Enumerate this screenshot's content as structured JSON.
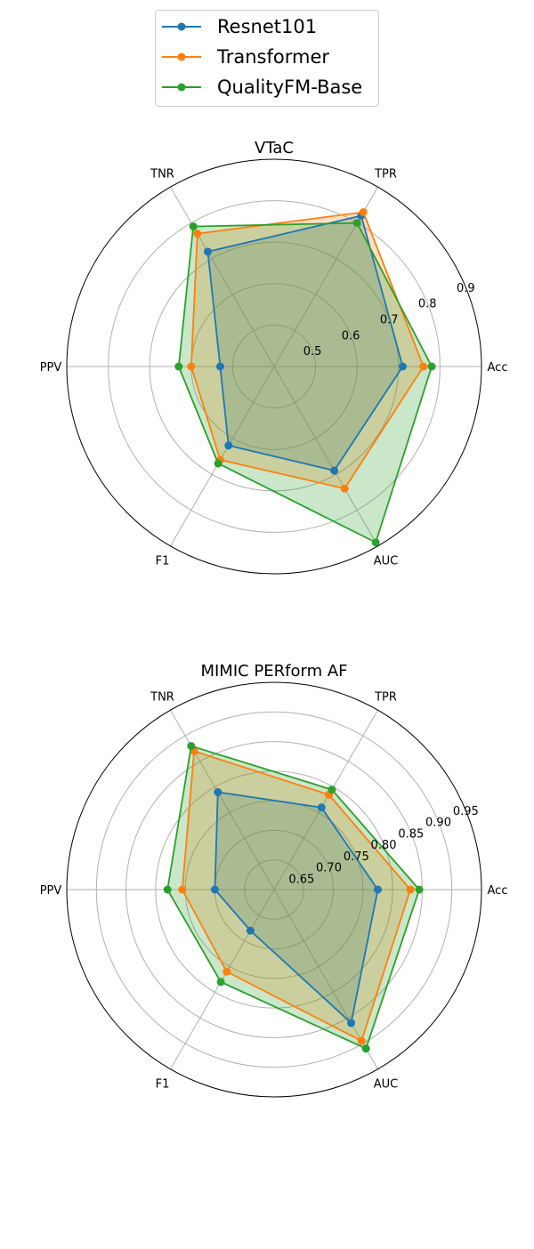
{
  "legend": {
    "placement": "top-center",
    "entries": [
      {
        "name": "Resnet101",
        "color": "#1f77b4"
      },
      {
        "name": "Transformer",
        "color": "#ff7f0e"
      },
      {
        "name": "QualityFM-Base",
        "color": "#2ca02c"
      }
    ]
  },
  "chart_data": [
    {
      "type": "radar",
      "title": "VTaC",
      "axes": [
        "Acc",
        "TPR",
        "TNR",
        "PPV",
        "F1",
        "AUC"
      ],
      "rlim": [
        0.4,
        0.9
      ],
      "radial_ticks": [
        0.5,
        0.6,
        0.7,
        0.8,
        0.9
      ],
      "radial_tick_labels": [
        "0.5",
        "0.6",
        "0.7",
        "0.8",
        "0.9"
      ],
      "grid": true,
      "series": [
        {
          "name": "Resnet101",
          "values": [
            0.71,
            0.82,
            0.72,
            0.53,
            0.62,
            0.69
          ]
        },
        {
          "name": "Transformer",
          "values": [
            0.76,
            0.83,
            0.77,
            0.6,
            0.66,
            0.74
          ]
        },
        {
          "name": "QualityFM-Base",
          "values": [
            0.78,
            0.8,
            0.79,
            0.63,
            0.67,
            0.89
          ]
        }
      ]
    },
    {
      "type": "radar",
      "title": "MIMIC PERform AF",
      "axes": [
        "Acc",
        "TPR",
        "TNR",
        "PPV",
        "F1",
        "AUC"
      ],
      "rlim": [
        0.6,
        0.95
      ],
      "radial_ticks": [
        0.65,
        0.7,
        0.75,
        0.8,
        0.85,
        0.9,
        0.95
      ],
      "radial_tick_labels": [
        "0.65",
        "0.70",
        "0.75",
        "0.80",
        "0.85",
        "0.90",
        "0.95"
      ],
      "grid": true,
      "series": [
        {
          "name": "Resnet101",
          "values": [
            0.775,
            0.76,
            0.79,
            0.7,
            0.68,
            0.86
          ]
        },
        {
          "name": "Transformer",
          "values": [
            0.83,
            0.785,
            0.87,
            0.755,
            0.76,
            0.895
          ]
        },
        {
          "name": "QualityFM-Base",
          "values": [
            0.845,
            0.795,
            0.88,
            0.78,
            0.78,
            0.91
          ]
        }
      ]
    }
  ]
}
